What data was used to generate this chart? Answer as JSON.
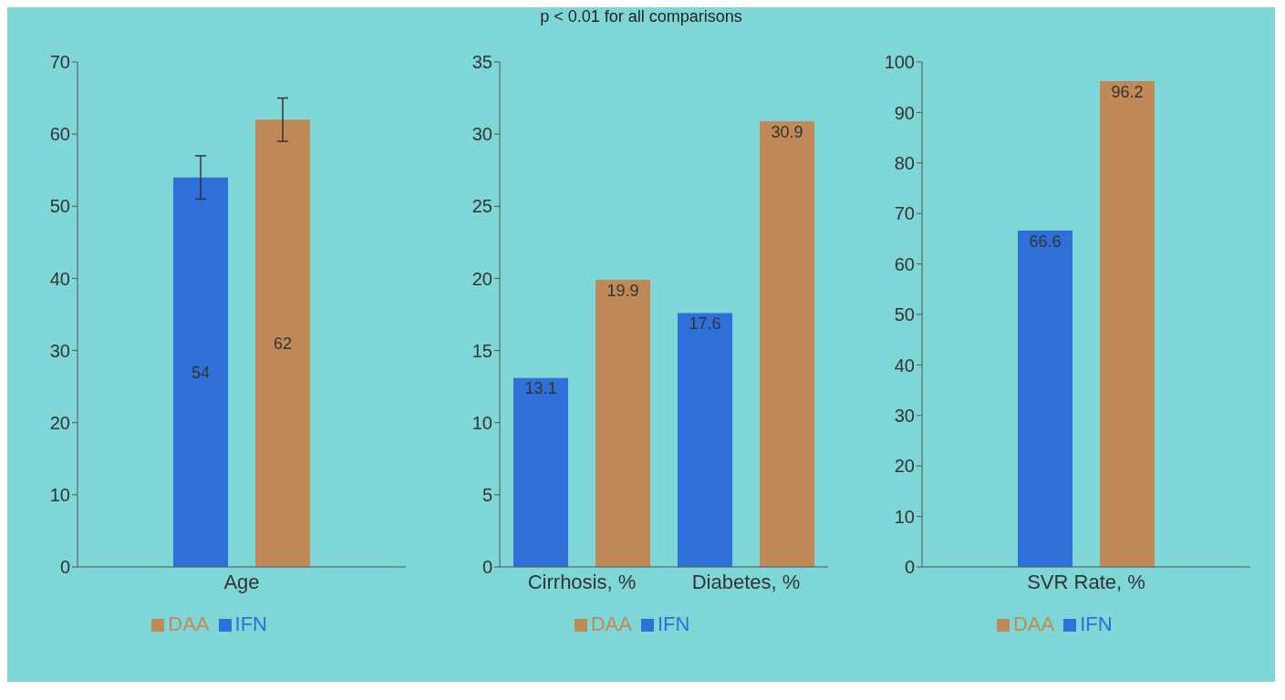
{
  "chart_data": [
    {
      "type": "bar",
      "categories": [
        "Age"
      ],
      "series": [
        {
          "name": "IFN",
          "color": "#2f6fd8",
          "values": [
            54
          ],
          "errors": [
            3
          ]
        },
        {
          "name": "DAA",
          "color": "#c08a58",
          "values": [
            62
          ],
          "errors": [
            3
          ]
        }
      ],
      "ylim": [
        0,
        70
      ],
      "yticks": [
        0,
        10,
        20,
        30,
        40,
        50,
        60,
        70
      ],
      "data_labels": true,
      "legend": "bottom",
      "grid": false
    },
    {
      "type": "bar",
      "title": "p < 0.01 for all comparisons",
      "categories": [
        "Cirrhosis, %",
        "Diabetes, %"
      ],
      "series": [
        {
          "name": "IFN",
          "color": "#2f6fd8",
          "values": [
            13.1,
            17.6
          ]
        },
        {
          "name": "DAA",
          "color": "#c08a58",
          "values": [
            19.9,
            30.9
          ]
        }
      ],
      "ylim": [
        0,
        35
      ],
      "yticks": [
        0,
        5,
        10,
        15,
        20,
        25,
        30,
        35
      ],
      "data_labels": true,
      "legend": "bottom",
      "grid": false
    },
    {
      "type": "bar",
      "categories": [
        "SVR Rate, %"
      ],
      "series": [
        {
          "name": "IFN",
          "color": "#2f6fd8",
          "values": [
            66.6
          ]
        },
        {
          "name": "DAA",
          "color": "#c08a58",
          "values": [
            96.2
          ]
        }
      ],
      "ylim": [
        0,
        100
      ],
      "yticks": [
        0,
        10,
        20,
        30,
        40,
        50,
        60,
        70,
        80,
        90,
        100
      ],
      "data_labels": true,
      "legend": "bottom",
      "grid": false
    }
  ]
}
